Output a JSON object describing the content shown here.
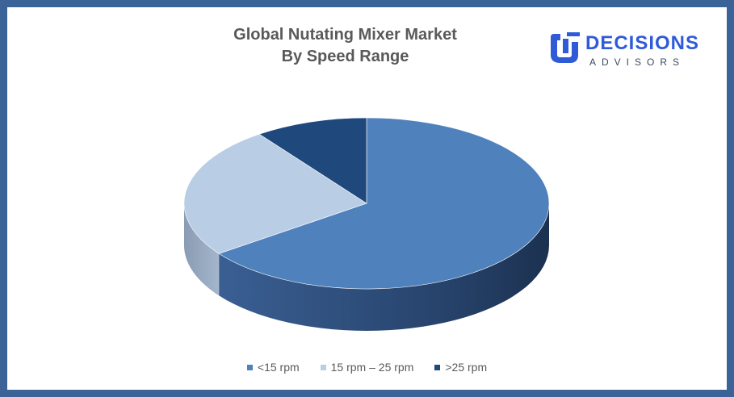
{
  "chart_data": {
    "type": "pie",
    "title_lines": [
      "Global Nutating Mixer Market",
      "By Speed Range"
    ],
    "series": [
      {
        "name": "<15 rpm",
        "value": 65,
        "color": "#4f81bd"
      },
      {
        "name": "15 rpm – 25 rpm",
        "value": 25,
        "color": "#b9cde5"
      },
      {
        "name": ">25 rpm",
        "value": 10,
        "color": "#1f497d"
      }
    ],
    "legend_position": "bottom",
    "style": "3d"
  },
  "logo": {
    "name": "DECISIONS",
    "subtitle": "ADVISORS",
    "color": "#2f5bd9"
  },
  "frame_color": "#3c6397"
}
